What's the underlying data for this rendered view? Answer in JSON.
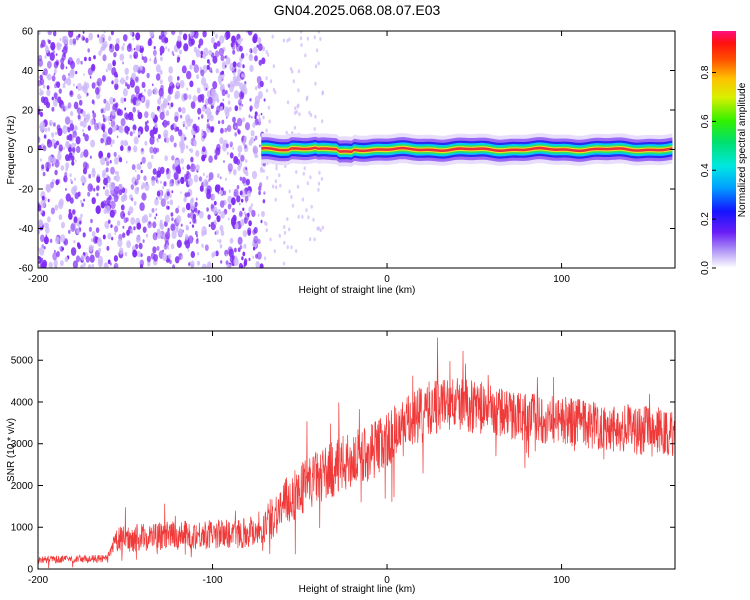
{
  "chart_data": [
    {
      "type": "heatmap",
      "title": "GN04.2025.068.08.07.E03",
      "xlabel": "Height of straight line (km)",
      "ylabel": "Frequency (Hz)",
      "xlim": [
        -200,
        165
      ],
      "ylim": [
        -60,
        60
      ],
      "x_ticks": [
        "-200",
        "-100",
        "0",
        "100"
      ],
      "y_ticks": [
        "60",
        "40",
        "20",
        "0",
        "-20",
        "-40",
        "-60"
      ],
      "colorbar": {
        "label": "Normalized spectral amplitude",
        "range": [
          0,
          0.97
        ],
        "ticks": [
          "0.0",
          "0.2",
          "0.4",
          "0.6",
          "0.8"
        ]
      },
      "regions": [
        {
          "x_range": [
            -200,
            -70
          ],
          "freq_range": [
            -60,
            60
          ],
          "amplitude": [
            0.1,
            0.3
          ],
          "pattern": "scattered noise"
        },
        {
          "x_range": [
            -72,
            165
          ],
          "freq_center": 0,
          "freq_halfwidth": 4,
          "amplitude_peak": 0.95,
          "pattern": "narrow band at 0 Hz"
        }
      ],
      "colors": {
        "noise": "#7f2cf5",
        "band_core": "#e8303a",
        "band_edge": "#2a2af0"
      }
    },
    {
      "type": "line",
      "title": "",
      "xlabel": "Height of straight line (km)",
      "ylabel": "SNR (10 * v/v)",
      "xlim": [
        -200,
        165
      ],
      "ylim": [
        0,
        5700
      ],
      "x_ticks": [
        "-200",
        "-100",
        "0",
        "100"
      ],
      "y_ticks": [
        "0",
        "1000",
        "2000",
        "3000",
        "4000",
        "5000"
      ],
      "color": "#f03a3a",
      "series": [
        {
          "x": [
            -200,
            -190,
            -180,
            -170,
            -160,
            -155,
            -150,
            -140,
            -130,
            -120,
            -110,
            -100,
            -90,
            -80,
            -70,
            -60,
            -50,
            -40,
            -30,
            -20,
            -10,
            0,
            10,
            20,
            30,
            40,
            50,
            60,
            70,
            80,
            90,
            100,
            110,
            120,
            130,
            140,
            150,
            160,
            165
          ],
          "y": [
            220,
            230,
            240,
            240,
            250,
            700,
            720,
            760,
            780,
            800,
            820,
            830,
            850,
            880,
            1050,
            1500,
            1900,
            2200,
            2400,
            2600,
            2800,
            3100,
            3400,
            3700,
            3950,
            3950,
            3900,
            3800,
            3700,
            3650,
            3600,
            3550,
            3500,
            3450,
            3400,
            3350,
            3300,
            3250,
            3200
          ],
          "spread": [
            90,
            90,
            90,
            90,
            90,
            300,
            320,
            340,
            340,
            350,
            350,
            350,
            360,
            380,
            450,
            600,
            650,
            650,
            700,
            700,
            700,
            700,
            700,
            700,
            700,
            650,
            650,
            600,
            600,
            600,
            600,
            600,
            600,
            600,
            600,
            600,
            600,
            600,
            600
          ]
        }
      ]
    }
  ]
}
